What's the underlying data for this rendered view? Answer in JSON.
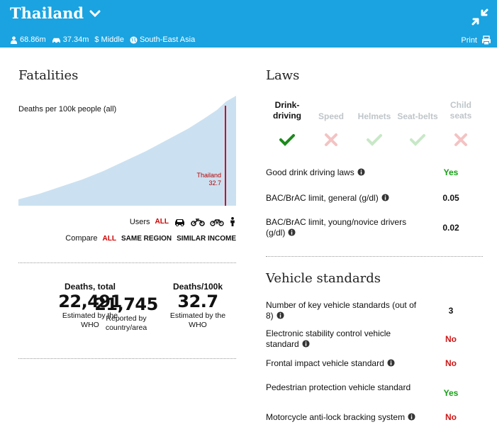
{
  "header": {
    "country": "Thailand",
    "population": "68.86m",
    "vehicles": "37.34m",
    "income": "Middle",
    "region": "South-East Asia",
    "print_label": "Print",
    "bg_color": "#1aa3e0"
  },
  "fatalities": {
    "title": "Fatalities",
    "chart_label": "Deaths per 100k people (all)",
    "users_label": "Users",
    "users_all": "ALL",
    "compare_label": "Compare",
    "compare_all": "ALL",
    "compare_same_region": "SAME REGION",
    "compare_similar_income": "SIMILAR INCOME",
    "stats": [
      {
        "head": "Deaths, total",
        "value": "22,491",
        "desc": "Estimated by the WHO"
      },
      {
        "head": "",
        "value": "21,745",
        "desc": "Reported by country/area"
      },
      {
        "head": "Deaths/100k",
        "value": "32.7",
        "desc": "Estimated by the WHO"
      }
    ]
  },
  "chart_data": {
    "type": "area",
    "title": "Deaths per 100k people (all)",
    "highlight": {
      "label": "Thailand",
      "value": 32.7
    },
    "series_color": "#bcd9ee",
    "highlight_color": "#d0021b"
  },
  "laws": {
    "title": "Laws",
    "tabs": [
      {
        "label": "Drink-driving",
        "status": "yes",
        "active": true
      },
      {
        "label": "Speed",
        "status": "no",
        "active": false
      },
      {
        "label": "Helmets",
        "status": "yes",
        "active": false
      },
      {
        "label": "Seat-belts",
        "status": "yes",
        "active": false
      },
      {
        "label": "Child seats",
        "status": "no",
        "active": false
      }
    ],
    "rows": [
      {
        "label": "Good drink driving laws",
        "value": "Yes"
      },
      {
        "label": "BAC/BrAC limit, general (g/dl)",
        "value": "0.05"
      },
      {
        "label": "BAC/BrAC limit, young/novice drivers (g/dl)",
        "value": "0.02"
      }
    ]
  },
  "vehicle_standards": {
    "title": "Vehicle standards",
    "rows": [
      {
        "label": "Number of key vehicle standards (out of 8)",
        "value": "3"
      },
      {
        "label": "Electronic stability control vehicle standard",
        "value": "No"
      },
      {
        "label": "Frontal impact vehicle standard",
        "value": "No"
      },
      {
        "label": "Pedestrian protection vehicle standard",
        "value": "Yes"
      },
      {
        "label": "Motorcycle anti-lock bracking system",
        "value": "No"
      }
    ]
  }
}
